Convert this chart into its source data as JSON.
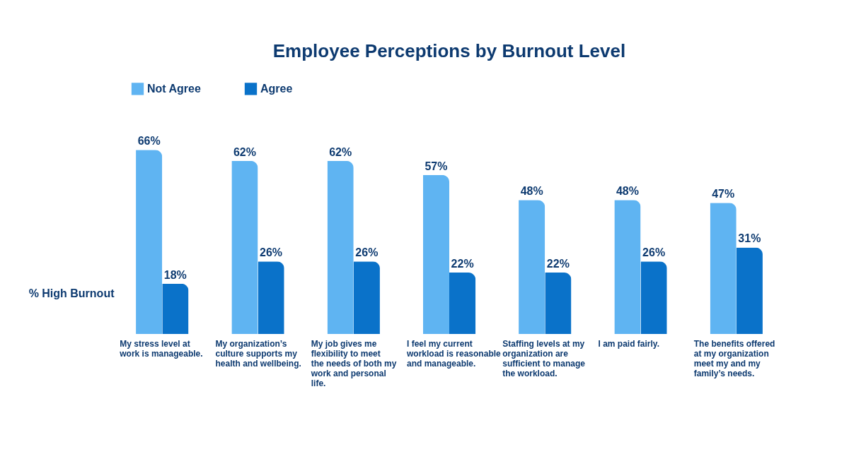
{
  "chart_data": {
    "type": "bar",
    "title": "Employee Perceptions by Burnout Level",
    "ylabel": "% High Burnout",
    "categories": [
      "My stress level at work is manageable.",
      "My organization’s culture supports my health and wellbeing.",
      "My job gives me flexibility to meet the needs of both my work and personal life.",
      "I feel my current workload is reasonable and manageable.",
      "Staffing levels at my organization are sufficient to manage the workload.",
      "I am paid fairly.",
      "The benefits offered at my organization meet my and my family’s needs."
    ],
    "series": [
      {
        "name": "Not Agree",
        "color": "#5fb4f2",
        "values": [
          66,
          62,
          62,
          57,
          48,
          48,
          47
        ],
        "value_labels": [
          "66%",
          "62%",
          "62%",
          "57%",
          "48%",
          "48%",
          "47%"
        ]
      },
      {
        "name": "Agree",
        "color": "#0a72c9",
        "values": [
          18,
          26,
          26,
          22,
          22,
          26,
          31
        ],
        "value_labels": [
          "18%",
          "26%",
          "26%",
          "22%",
          "22%",
          "26%",
          "31%"
        ]
      }
    ],
    "legend": "top",
    "tick_labels": "x",
    "grid": false
  }
}
